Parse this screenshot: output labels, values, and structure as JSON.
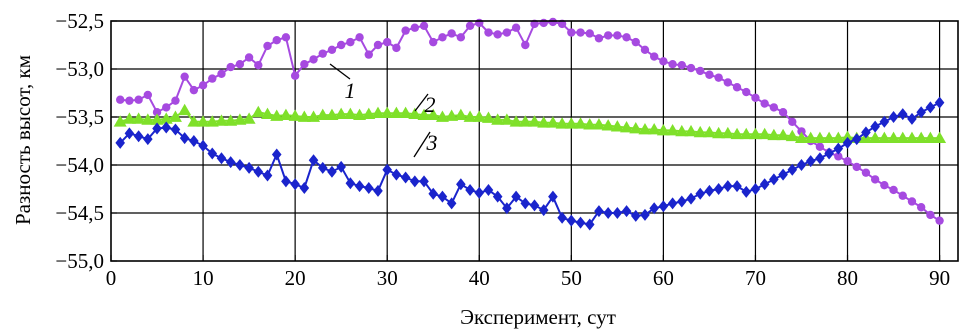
{
  "chart_data": {
    "type": "line",
    "xlabel": "Эксперимент, сут",
    "ylabel": "Разность высот, км",
    "xlim": [
      0,
      92
    ],
    "ylim": [
      -55.0,
      -52.5
    ],
    "xticks": [
      0,
      10,
      20,
      30,
      40,
      50,
      60,
      70,
      80,
      90
    ],
    "xtick_labels": [
      "0",
      "10",
      "20",
      "30",
      "40",
      "50",
      "60",
      "70",
      "80",
      "90"
    ],
    "yticks": [
      -55.0,
      -54.5,
      -54.0,
      -53.5,
      -53.0,
      -52.5
    ],
    "ytick_labels": [
      "−55,0",
      "−54,5",
      "−54,0",
      "−53,5",
      "−53,0",
      "−52,5"
    ],
    "grid": true,
    "x": [
      1,
      2,
      3,
      4,
      5,
      6,
      7,
      8,
      9,
      10,
      11,
      12,
      13,
      14,
      15,
      16,
      17,
      18,
      19,
      20,
      21,
      22,
      23,
      24,
      25,
      26,
      27,
      28,
      29,
      30,
      31,
      32,
      33,
      34,
      35,
      36,
      37,
      38,
      39,
      40,
      41,
      42,
      43,
      44,
      45,
      46,
      47,
      48,
      49,
      50,
      51,
      52,
      53,
      54,
      55,
      56,
      57,
      58,
      59,
      60,
      61,
      62,
      63,
      64,
      65,
      66,
      67,
      68,
      69,
      70,
      71,
      72,
      73,
      74,
      75,
      76,
      77,
      78,
      79,
      80,
      81,
      82,
      83,
      84,
      85,
      86,
      87,
      88,
      89,
      90
    ],
    "series": [
      {
        "name": "1",
        "color": "#A64AE0",
        "marker": "circle",
        "values": [
          -53.32,
          -53.33,
          -53.32,
          -53.27,
          -53.45,
          -53.4,
          -53.33,
          -53.08,
          -53.22,
          -53.17,
          -53.1,
          -53.05,
          -52.98,
          -52.95,
          -52.88,
          -52.96,
          -52.76,
          -52.7,
          -52.67,
          -53.07,
          -52.95,
          -52.9,
          -52.84,
          -52.8,
          -52.75,
          -52.72,
          -52.67,
          -52.85,
          -52.75,
          -52.72,
          -52.78,
          -52.6,
          -52.57,
          -52.55,
          -52.72,
          -52.67,
          -52.63,
          -52.67,
          -52.55,
          -52.52,
          -52.62,
          -52.64,
          -52.62,
          -52.57,
          -52.75,
          -52.53,
          -52.52,
          -52.51,
          -52.53,
          -52.62,
          -52.62,
          -52.63,
          -52.68,
          -52.65,
          -52.65,
          -52.67,
          -52.72,
          -52.8,
          -52.87,
          -52.92,
          -52.95,
          -52.96,
          -52.99,
          -53.02,
          -53.06,
          -53.09,
          -53.14,
          -53.19,
          -53.24,
          -53.3,
          -53.36,
          -53.4,
          -53.45,
          -53.55,
          -53.65,
          -53.75,
          -53.81,
          -53.87,
          -53.91,
          -53.96,
          -54.02,
          -54.08,
          -54.15,
          -54.21,
          -54.26,
          -54.32,
          -54.38,
          -54.44,
          -54.52,
          -54.58
        ]
      },
      {
        "name": "2",
        "color": "#7FE02A",
        "marker": "triangle",
        "values": [
          -53.55,
          -53.52,
          -53.52,
          -53.53,
          -53.53,
          -53.52,
          -53.5,
          -53.43,
          -53.55,
          -53.55,
          -53.55,
          -53.54,
          -53.54,
          -53.53,
          -53.52,
          -53.45,
          -53.47,
          -53.49,
          -53.48,
          -53.49,
          -53.5,
          -53.5,
          -53.48,
          -53.48,
          -53.47,
          -53.47,
          -53.48,
          -53.47,
          -53.46,
          -53.46,
          -53.46,
          -53.46,
          -53.47,
          -53.48,
          -53.48,
          -53.5,
          -53.49,
          -53.48,
          -53.5,
          -53.5,
          -53.51,
          -53.53,
          -53.53,
          -53.55,
          -53.55,
          -53.55,
          -53.56,
          -53.56,
          -53.57,
          -53.57,
          -53.57,
          -53.58,
          -53.58,
          -53.59,
          -53.6,
          -53.61,
          -53.62,
          -53.63,
          -53.63,
          -53.64,
          -53.64,
          -53.65,
          -53.65,
          -53.66,
          -53.66,
          -53.67,
          -53.67,
          -53.68,
          -53.68,
          -53.68,
          -53.68,
          -53.69,
          -53.69,
          -53.7,
          -53.72,
          -53.72,
          -53.72,
          -53.72,
          -53.72,
          -53.71,
          -53.72,
          -53.72,
          -53.72,
          -53.72,
          -53.72,
          -53.72,
          -53.72,
          -53.72,
          -53.72,
          -53.72
        ]
      },
      {
        "name": "3",
        "color": "#1A24CC",
        "marker": "diamond",
        "values": [
          -53.77,
          -53.67,
          -53.7,
          -53.73,
          -53.62,
          -53.61,
          -53.63,
          -53.72,
          -53.75,
          -53.8,
          -53.88,
          -53.93,
          -53.97,
          -54.0,
          -54.03,
          -54.07,
          -54.11,
          -53.89,
          -54.17,
          -54.2,
          -54.24,
          -53.95,
          -54.03,
          -54.07,
          -54.02,
          -54.19,
          -54.22,
          -54.24,
          -54.27,
          -54.05,
          -54.1,
          -54.13,
          -54.17,
          -54.17,
          -54.3,
          -54.33,
          -54.4,
          -54.2,
          -54.26,
          -54.29,
          -54.26,
          -54.33,
          -54.45,
          -54.33,
          -54.4,
          -54.42,
          -54.47,
          -54.33,
          -54.55,
          -54.58,
          -54.6,
          -54.62,
          -54.48,
          -54.5,
          -54.5,
          -54.48,
          -54.53,
          -54.52,
          -54.45,
          -54.43,
          -54.4,
          -54.38,
          -54.35,
          -54.3,
          -54.27,
          -54.25,
          -54.22,
          -54.22,
          -54.28,
          -54.25,
          -54.2,
          -54.15,
          -54.1,
          -54.05,
          -54.0,
          -53.96,
          -53.93,
          -53.88,
          -53.83,
          -53.77,
          -53.73,
          -53.66,
          -53.6,
          -53.55,
          -53.5,
          -53.47,
          -53.52,
          -53.45,
          -53.4,
          -53.35
        ]
      }
    ]
  }
}
